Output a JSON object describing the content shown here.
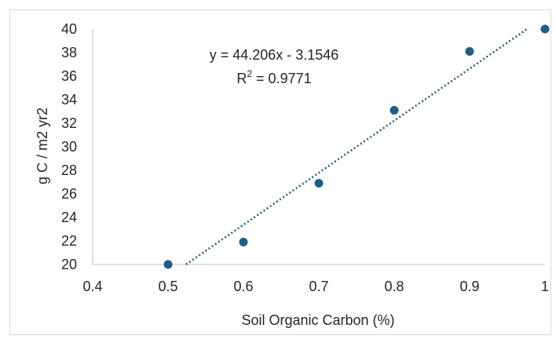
{
  "chart_data": {
    "type": "scatter",
    "title": "",
    "xlabel": "Soil Organic Carbon (%)",
    "ylabel": "g C / m2 yr2",
    "xlim": [
      0.4,
      1.0
    ],
    "ylim": [
      20,
      40
    ],
    "xticks": [
      "0.4",
      "0.5",
      "0.6",
      "0.7",
      "0.8",
      "0.9",
      "1"
    ],
    "yticks": [
      "20",
      "22",
      "24",
      "26",
      "28",
      "30",
      "32",
      "34",
      "36",
      "38",
      "40"
    ],
    "points": [
      {
        "x": 0.5,
        "y": 20
      },
      {
        "x": 0.6,
        "y": 21.9
      },
      {
        "x": 0.7,
        "y": 26.9
      },
      {
        "x": 0.8,
        "y": 33.1
      },
      {
        "x": 0.9,
        "y": 38.1
      },
      {
        "x": 1.0,
        "y": 40
      }
    ],
    "trendline": {
      "type": "linear",
      "slope": 44.206,
      "intercept": -3.1546,
      "equation": "y = 44.206x - 3.1546",
      "r2_label": "R",
      "r2_exponent": "2",
      "r2_value": " = 0.9771"
    },
    "grid": false,
    "colors": {
      "marker": "#1f5e82",
      "trendline": "#1f5e82",
      "axis": "#bfbfbf"
    }
  }
}
